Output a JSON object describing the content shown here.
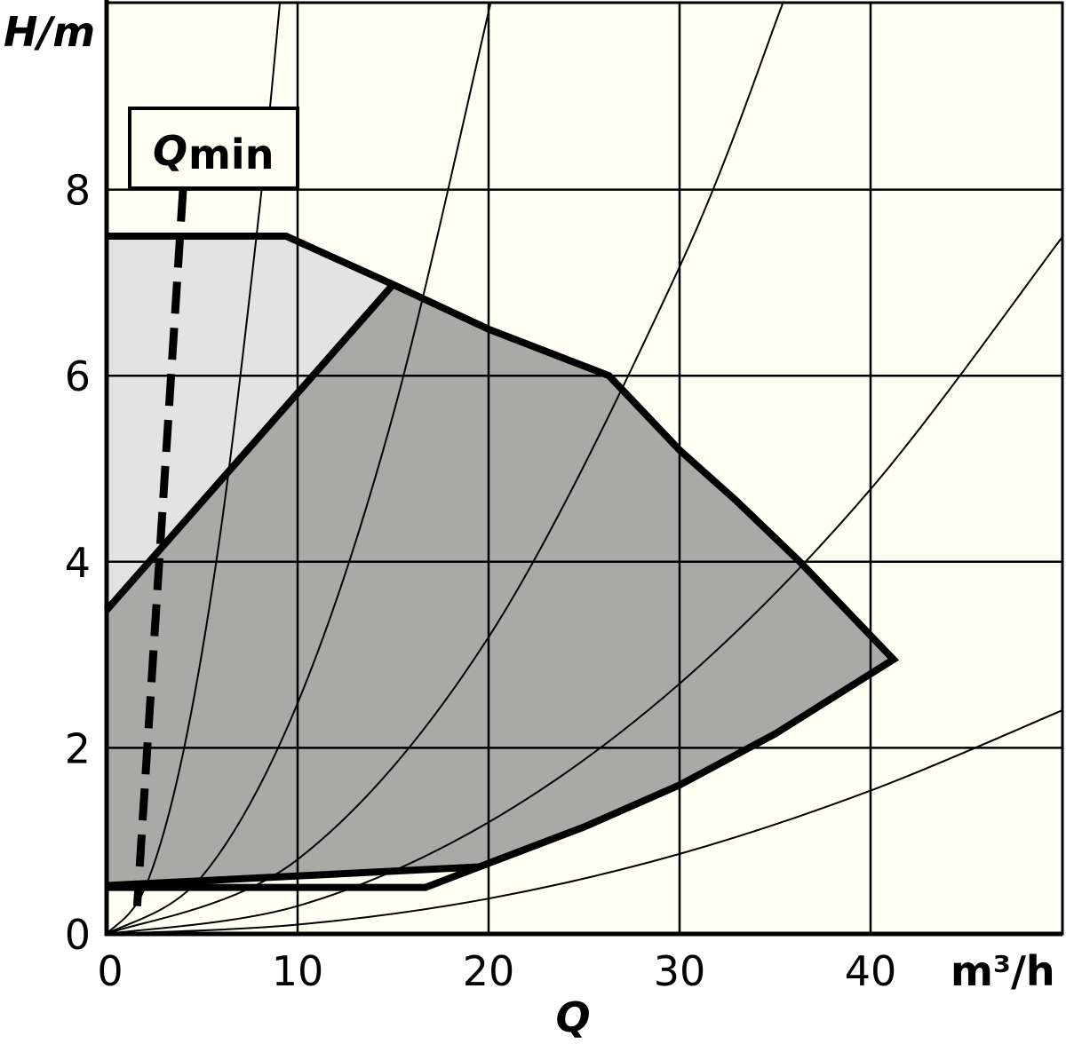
{
  "chart_data": {
    "type": "pump-curve",
    "y_label": "H/m",
    "x_unit_label": "m³/h",
    "x_label": "Q",
    "box_label": "Q",
    "box_label_sub": "min",
    "xlim": [
      0,
      50
    ],
    "ylim": [
      0,
      10
    ],
    "xticks": [
      0,
      10,
      20,
      30,
      40
    ],
    "yticks": [
      0,
      2,
      4,
      6,
      8
    ],
    "grid": true,
    "background": "#fffff4",
    "areas": [
      {
        "color": "#e3e3e3",
        "x": [
          0,
          9.4,
          15,
          0
        ],
        "values": [
          7.5,
          7.5,
          6.98,
          3.48
        ]
      },
      {
        "color": "#a9a9a8",
        "x": [
          0,
          15,
          20,
          26.3,
          30,
          33,
          36.3,
          41.2,
          35,
          30,
          25,
          19.5,
          0
        ],
        "values": [
          3.48,
          6.98,
          6.5,
          6.0,
          5.2,
          4.65,
          4.0,
          2.95,
          2.15,
          1.6,
          1.15,
          0.72,
          0.52
        ]
      }
    ],
    "lines": [
      {
        "color": "#000000",
        "style": "solid",
        "x": [
          0,
          9.4,
          15,
          20,
          26.3,
          30,
          33,
          36.3,
          41.2,
          35,
          30,
          25,
          19.5,
          0
        ],
        "values": [
          7.5,
          7.5,
          6.98,
          6.5,
          6.0,
          5.2,
          4.65,
          4.0,
          2.95,
          2.15,
          1.6,
          1.15,
          0.72,
          0.52
        ]
      },
      {
        "color": "#000000",
        "style": "solid",
        "x": [
          0,
          15
        ],
        "values": [
          3.48,
          6.98
        ]
      },
      {
        "color": "#000000",
        "style": "solid",
        "x": [
          0,
          16.7,
          19.5
        ],
        "values": [
          0.5,
          0.5,
          0.72
        ]
      },
      {
        "color": "#000000",
        "style": "dashed",
        "x": [
          4.0,
          1.6
        ],
        "values": [
          8.0,
          0.3
        ]
      }
    ],
    "system_curves": [
      {
        "color": "#000000",
        "x": [
          0,
          2,
          4,
          6,
          8,
          9.07
        ],
        "values": [
          0,
          0.49,
          1.94,
          4.37,
          7.78,
          10
        ]
      },
      {
        "color": "#000000",
        "x": [
          0,
          5,
          10,
          15,
          20.1
        ],
        "values": [
          0,
          0.62,
          2.48,
          5.58,
          10
        ]
      },
      {
        "color": "#000000",
        "x": [
          0,
          10,
          20,
          30,
          35.4
        ],
        "values": [
          0,
          0.8,
          3.19,
          7.17,
          10
        ]
      },
      {
        "color": "#000000",
        "x": [
          0,
          10,
          20,
          30,
          40,
          50
        ],
        "values": [
          0,
          0.3,
          1.2,
          2.69,
          4.78,
          7.48
        ]
      },
      {
        "color": "#000000",
        "x": [
          0,
          10,
          20,
          30,
          40,
          50
        ],
        "values": [
          0,
          0.1,
          0.38,
          0.86,
          1.54,
          2.4
        ]
      }
    ]
  }
}
